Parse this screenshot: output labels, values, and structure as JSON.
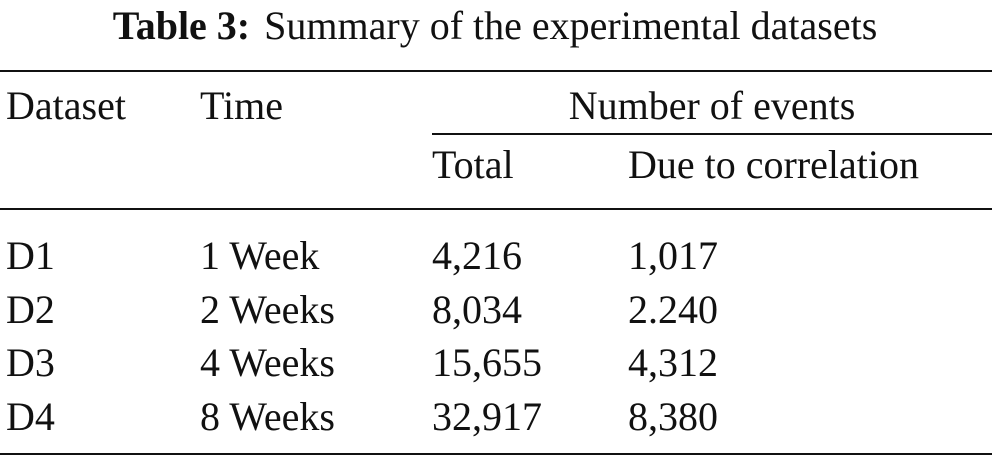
{
  "caption": {
    "label": "Table 3:",
    "text": "Summary of the experimental datasets"
  },
  "table": {
    "header": [
      "Dataset",
      "Time",
      "Number of events"
    ],
    "subheader": [
      "Total",
      "Due to correlation"
    ],
    "rows": [
      [
        "D1",
        "1 Week",
        "4,216",
        "1,017"
      ],
      [
        "D2",
        "2 Weeks",
        "8,034",
        "2.240"
      ],
      [
        "D3",
        "4 Weeks",
        "15,655",
        "4,312"
      ],
      [
        "D4",
        "8 Weeks",
        "32,917",
        "8,380"
      ]
    ]
  }
}
